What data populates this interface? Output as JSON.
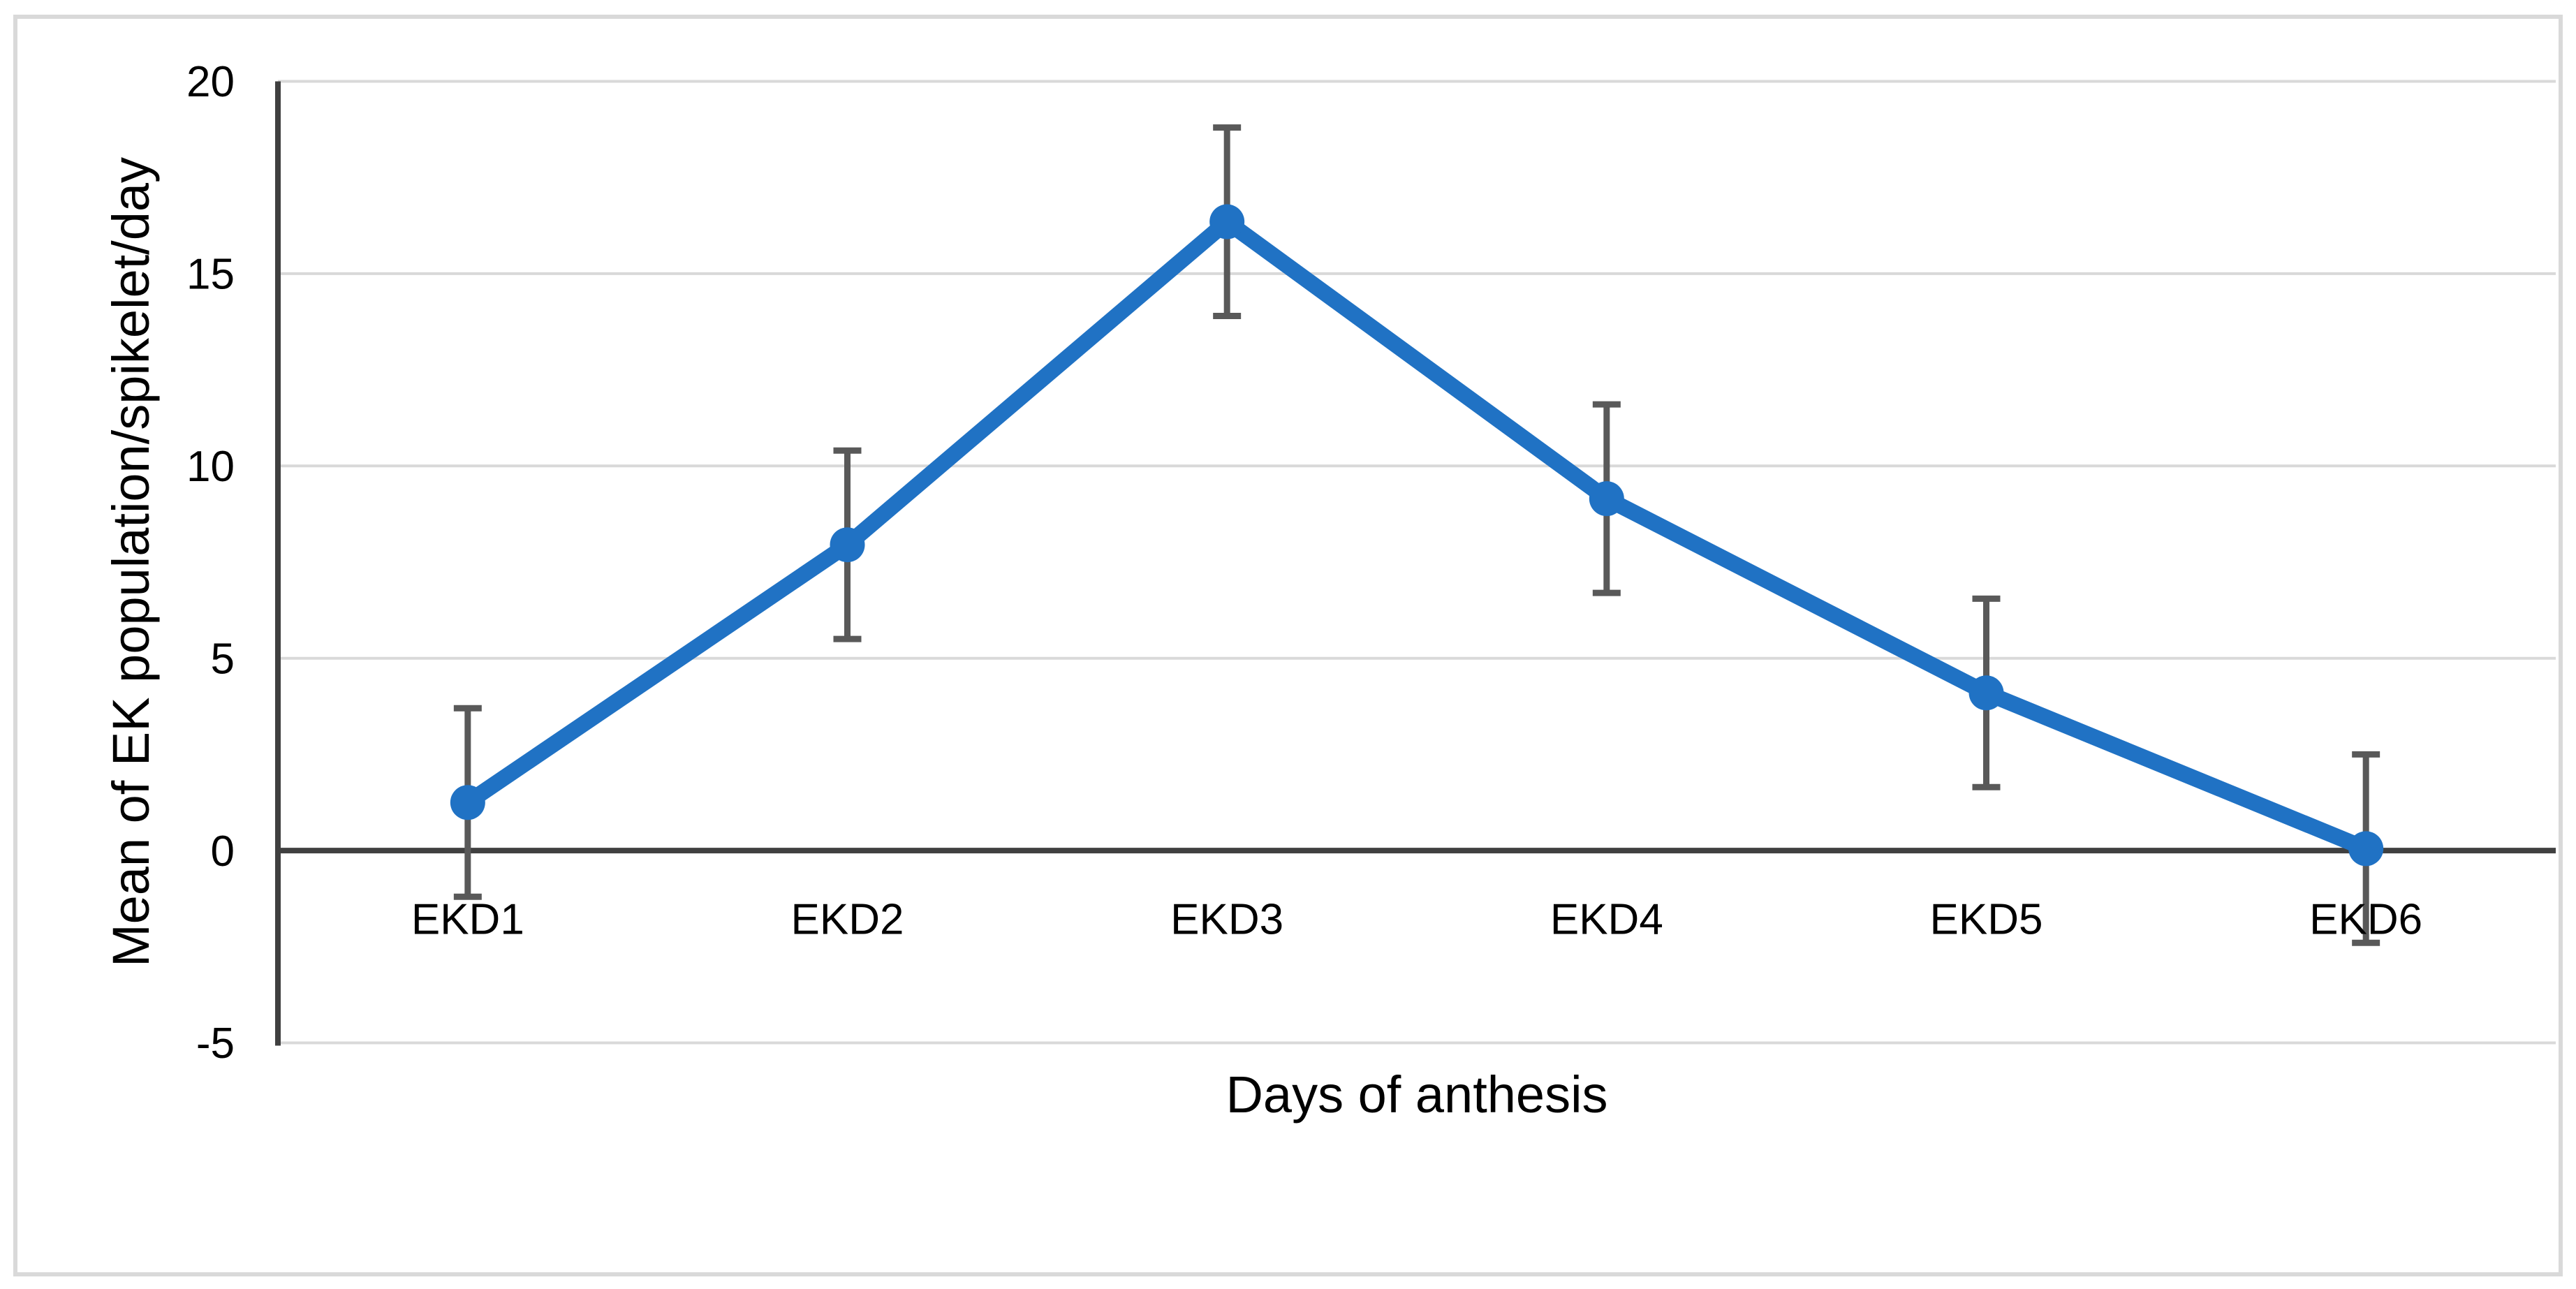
{
  "chart_data": {
    "type": "line",
    "title": "",
    "xlabel": "Days of anthesis",
    "ylabel": "Mean of EK population/spikelet/day",
    "categories": [
      "EKD1",
      "EKD2",
      "EKD3",
      "EKD4",
      "EKD5",
      "EKD6"
    ],
    "series": [
      {
        "name": "Mean of EK population per spikelet per day",
        "values": [
          1.25,
          7.95,
          16.35,
          9.15,
          4.1,
          0.05
        ],
        "error_bar": 2.45
      }
    ],
    "ylim": [
      -5,
      20
    ],
    "yticks": [
      20,
      15,
      10,
      5,
      0,
      -5
    ],
    "grid": true,
    "legend_position": "none",
    "marker": "circle"
  },
  "colors": {
    "line": "#2072C4",
    "marker": "#2072C4",
    "error_bar": "#595959",
    "axis_line": "#404040",
    "gridline": "#D9D9D9",
    "figure_border": "#D9D9D9",
    "text": "#000000"
  }
}
